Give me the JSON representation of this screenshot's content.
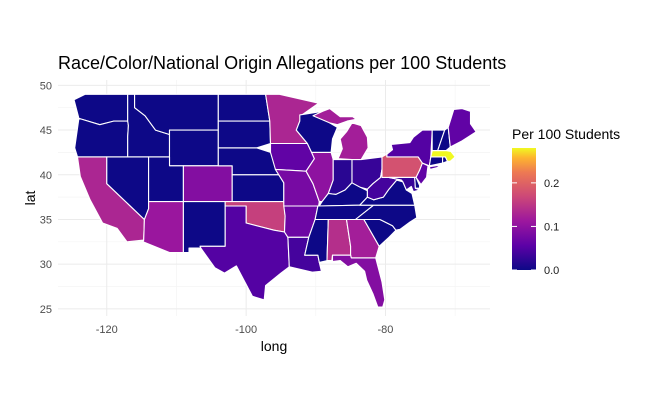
{
  "chart_data": {
    "type": "choropleth",
    "title": "Race/Color/National Origin Allegations per 100 Students",
    "xlabel": "long",
    "ylabel": "lat",
    "x_ticks": [
      -120,
      -100,
      -80
    ],
    "y_ticks": [
      25,
      30,
      35,
      40,
      45,
      50
    ],
    "xlim": [
      -127,
      -65
    ],
    "ylim": [
      24.2,
      50.6
    ],
    "grid": true,
    "legend": {
      "title": "Per 100 Students",
      "placement": "right",
      "ticks": [
        0.0,
        0.1,
        0.2
      ],
      "tick_labels": [
        "0.0",
        "0.1",
        "0.2"
      ],
      "range": [
        0,
        0.28
      ],
      "colormap": "plasma"
    },
    "states": [
      {
        "name": "WA",
        "value": 0.0
      },
      {
        "name": "OR",
        "value": 0.0
      },
      {
        "name": "CA",
        "value": 0.13
      },
      {
        "name": "ID",
        "value": 0.0
      },
      {
        "name": "NV",
        "value": 0.0
      },
      {
        "name": "MT",
        "value": 0.0
      },
      {
        "name": "WY",
        "value": 0.0
      },
      {
        "name": "UT",
        "value": 0.0
      },
      {
        "name": "AZ",
        "value": 0.11
      },
      {
        "name": "CO",
        "value": 0.09
      },
      {
        "name": "NM",
        "value": 0.0
      },
      {
        "name": "ND",
        "value": 0.0
      },
      {
        "name": "SD",
        "value": 0.0
      },
      {
        "name": "NE",
        "value": 0.0
      },
      {
        "name": "KS",
        "value": 0.0
      },
      {
        "name": "OK",
        "value": 0.16
      },
      {
        "name": "TX",
        "value": 0.05
      },
      {
        "name": "MN",
        "value": 0.13
      },
      {
        "name": "IA",
        "value": 0.06
      },
      {
        "name": "MO",
        "value": 0.08
      },
      {
        "name": "AR",
        "value": 0.07
      },
      {
        "name": "LA",
        "value": 0.04
      },
      {
        "name": "WI",
        "value": 0.0
      },
      {
        "name": "IL",
        "value": 0.1
      },
      {
        "name": "MS",
        "value": 0.0
      },
      {
        "name": "MI",
        "value": 0.12
      },
      {
        "name": "IN",
        "value": 0.02
      },
      {
        "name": "KY",
        "value": 0.0
      },
      {
        "name": "TN",
        "value": 0.0
      },
      {
        "name": "AL",
        "value": 0.14
      },
      {
        "name": "OH",
        "value": 0.03
      },
      {
        "name": "GA",
        "value": 0.12
      },
      {
        "name": "FL",
        "value": 0.09
      },
      {
        "name": "SC",
        "value": 0.0
      },
      {
        "name": "NC",
        "value": 0.0
      },
      {
        "name": "VA",
        "value": 0.0
      },
      {
        "name": "WV",
        "value": 0.04
      },
      {
        "name": "PA",
        "value": 0.18
      },
      {
        "name": "NY",
        "value": 0.05
      },
      {
        "name": "MD",
        "value": 0.03
      },
      {
        "name": "DE",
        "value": 0.0
      },
      {
        "name": "NJ",
        "value": 0.06
      },
      {
        "name": "CT",
        "value": 0.0
      },
      {
        "name": "RI",
        "value": 0.0
      },
      {
        "name": "MA",
        "value": 0.28
      },
      {
        "name": "VT",
        "value": 0.0
      },
      {
        "name": "NH",
        "value": 0.0
      },
      {
        "name": "ME",
        "value": 0.06
      }
    ]
  }
}
